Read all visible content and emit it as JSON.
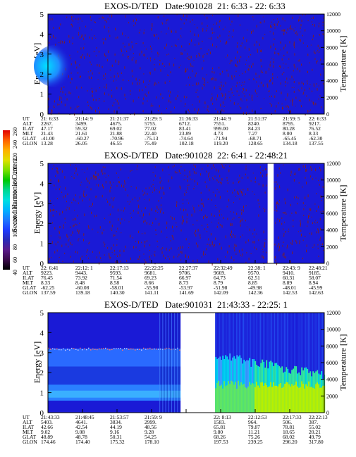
{
  "colors": {
    "background": "#1a1ad6",
    "noise": "#7a1f2a",
    "colorbar": [
      "#000000",
      "#3a0a4a",
      "#5a1a8a",
      "#2a2ab8",
      "#1e3cff",
      "#1e78ff",
      "#00b4ff",
      "#00e0e0",
      "#00d890",
      "#00c800",
      "#7ae000",
      "#e0e000",
      "#ffb000",
      "#ff6000",
      "#e00000"
    ]
  },
  "colorbar": {
    "label": "Second Harmonic Current",
    "ticks": [
      "40",
      "60",
      "80",
      "100",
      "120",
      "140",
      "160",
      "180",
      "200",
      "220",
      "240",
      "260"
    ]
  },
  "chart_data": [
    {
      "type": "heatmap",
      "title": "EXOS-D/TED   Date:901028  21: 6:33 - 22: 6:33",
      "ylabel": "Energy [eV]",
      "y2label": "Temperature [K]",
      "ylim": [
        0,
        5
      ],
      "y2lim": [
        0,
        12000
      ],
      "yticks": [
        "0",
        "1",
        "2",
        "3",
        "4",
        "5"
      ],
      "y2ticks": [
        "0",
        "2000",
        "4000",
        "6000",
        "8000",
        "10000",
        "12000"
      ],
      "ephemeris_labels": [
        "UT",
        "ALT",
        "ILAT",
        "MLT",
        "GLAT",
        "GLON"
      ],
      "ephemeris_columns": [
        [
          "21: 6:33",
          "2267.",
          "47.17",
          "21.43",
          "-41.00",
          "13.28"
        ],
        [
          "21:14: 9",
          "3499.",
          "59.32",
          "21.61",
          "-60.27",
          "26.05"
        ],
        [
          "21:21:37",
          "4675.",
          "69.02",
          "21.88",
          "-70.96",
          "46.55"
        ],
        [
          "21:29: 5",
          "5755.",
          "77.02",
          "22.40",
          "-75.13",
          "75.49"
        ],
        [
          "21:36:33",
          "6712.",
          "83.41",
          "23.89",
          "-74.64",
          "102.18"
        ],
        [
          "21:44: 9",
          "7551.",
          "999.00",
          "4.73",
          "-71.94",
          "119.20"
        ],
        [
          "21:51:37",
          "8240.",
          "84.23",
          "7.27",
          "-68.71",
          "128.65"
        ],
        [
          "21:59: 5",
          "8795.",
          "80.28",
          "8.00",
          "-65.45",
          "134.18"
        ],
        [
          "22: 6:33",
          "9217.",
          "76.52",
          "8.33",
          "-62.30",
          "137.55"
        ]
      ]
    },
    {
      "type": "heatmap",
      "title": "EXOS-D/TED   Date:901028  22: 6:41 - 22:48:21",
      "ylabel": "Energy [eV]",
      "y2label": "Temperature [K]",
      "ylim": [
        0,
        5
      ],
      "y2lim": [
        0,
        12000
      ],
      "yticks": [
        "0",
        "1",
        "2",
        "3",
        "4",
        "5"
      ],
      "y2ticks": [
        "0",
        "2000",
        "4000",
        "6000",
        "8000",
        "10000",
        "12000"
      ],
      "ephemeris_labels": [
        "UT",
        "ALT",
        "ILAT",
        "MLT",
        "GLAT",
        "GLON"
      ],
      "ephemeris_columns": [
        [
          "22: 6:41",
          "9223.",
          "76.45",
          "8.33",
          "-62.25",
          "137.59"
        ],
        [
          "22:12: 1",
          "9443.",
          "73.92",
          "8.48",
          "-60.08",
          "139.18"
        ],
        [
          "22:17:13",
          "9593.",
          "71.54",
          "8.58",
          "-58.01",
          "140.30"
        ],
        [
          "22:22:25",
          "9681.",
          "69.23",
          "8.66",
          "-55.98",
          "141.11"
        ],
        [
          "22:27:37",
          "9706.",
          "66.97",
          "8.73",
          "-53.97",
          "141.69"
        ],
        [
          "22:32:49",
          "9669.",
          "64.73",
          "8.79",
          "-51.98",
          "142.09"
        ],
        [
          "22:38: 1",
          "9570.",
          "62.51",
          "8.85",
          "-49.98",
          "142.36"
        ],
        [
          "22:43: 9",
          "9410.",
          "60.31",
          "8.89",
          "-48.01",
          "142.53"
        ],
        [
          "22:48:21",
          "9185.",
          "58.07",
          "8.94",
          "-45.99",
          "142.63"
        ]
      ]
    },
    {
      "type": "heatmap",
      "title": "EXOS-D/TED   Date:901031  21:43:33 - 22:25: 1",
      "ylabel": "Energy [eV]",
      "y2label": "Temperature [K]",
      "ylim": [
        0,
        5
      ],
      "y2lim": [
        0,
        12000
      ],
      "yticks": [
        "0",
        "1",
        "2",
        "3",
        "4",
        "5"
      ],
      "y2ticks": [
        "0",
        "2000",
        "4000",
        "6000",
        "8000",
        "10000",
        "12000"
      ],
      "ephemeris_labels": [
        "UT",
        "ALT",
        "ILAT",
        "MLT",
        "GLAT",
        "GLON"
      ],
      "ephemeris_columns": [
        [
          "21:43:33",
          "5403.",
          "42.66",
          "9.02",
          "48.89",
          "174.46"
        ],
        [
          "21:48:45",
          "4641.",
          "42.54",
          "9.08",
          "48.78",
          "174.40"
        ],
        [
          "21:53:57",
          "3834.",
          "44.19",
          "9.16",
          "50.31",
          "175.32"
        ],
        [
          "21:59: 9",
          "2999.",
          "48.56",
          "9.28",
          "54.25",
          "178.10"
        ],
        [
          "",
          "",
          "",
          "",
          "",
          ""
        ],
        [
          "22: 8:13",
          "1583.",
          "65.81",
          "9.80",
          "68.26",
          "197.53"
        ],
        [
          "22:12:53",
          "964.",
          "79.87",
          "11.21",
          "75.26",
          "239.25"
        ],
        [
          "22:17:33",
          "506.",
          "78.81",
          "18.65",
          "68.02",
          "296.20"
        ],
        [
          "22:22:13",
          "387.",
          "55.02",
          "20.21",
          "49.79",
          "317.80"
        ]
      ]
    }
  ]
}
